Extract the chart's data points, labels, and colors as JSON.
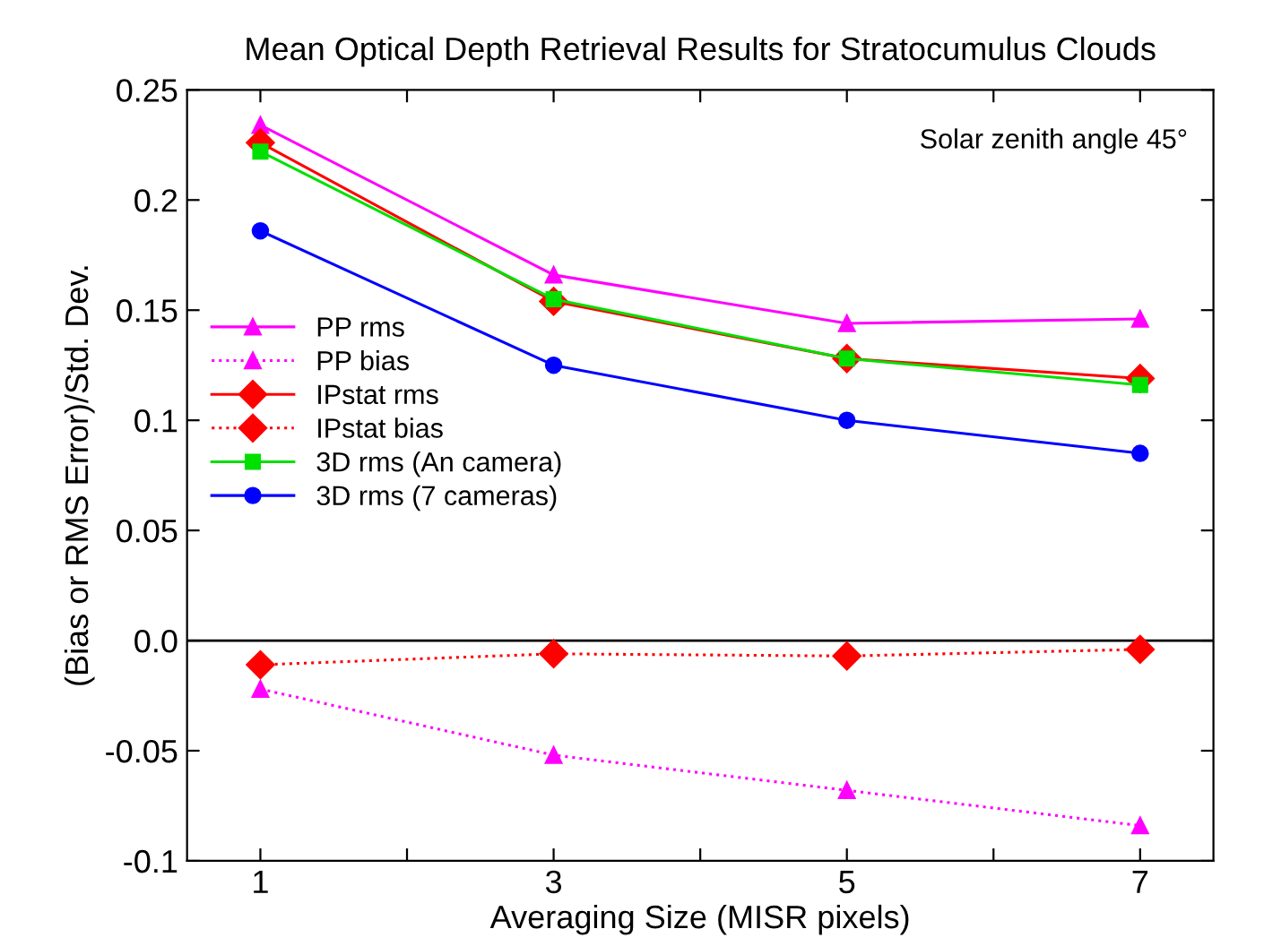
{
  "chart_data": {
    "type": "line",
    "title": "Mean Optical Depth Retrieval Results for Stratocumulus Clouds",
    "xlabel": "Averaging Size (MISR pixels)",
    "ylabel": "(Bias or RMS Error)/Std. Dev.",
    "annotations": [
      "Solar zenith angle 45°"
    ],
    "x": [
      1,
      3,
      5,
      7
    ],
    "series": [
      {
        "name": "PP rms",
        "color": "#ff00ff",
        "marker": "triangle",
        "line_style": "solid",
        "values": [
          0.234,
          0.166,
          0.144,
          0.146
        ]
      },
      {
        "name": "PP bias",
        "color": "#ff00ff",
        "marker": "triangle",
        "line_style": "dotted",
        "values": [
          -0.022,
          -0.052,
          -0.068,
          -0.084
        ]
      },
      {
        "name": "IPstat rms",
        "color": "#ff0000",
        "marker": "diamond",
        "line_style": "solid",
        "values": [
          0.226,
          0.154,
          0.128,
          0.119
        ]
      },
      {
        "name": "IPstat bias",
        "color": "#ff0000",
        "marker": "diamond",
        "line_style": "dotted",
        "values": [
          -0.011,
          -0.006,
          -0.007,
          -0.004
        ]
      },
      {
        "name": "3D rms (An camera)",
        "color": "#00e000",
        "marker": "square",
        "line_style": "solid",
        "values": [
          0.222,
          0.155,
          0.128,
          0.116
        ]
      },
      {
        "name": "3D rms (7 cameras)",
        "color": "#0000ff",
        "marker": "circle",
        "line_style": "solid",
        "values": [
          0.186,
          0.125,
          0.1,
          0.085
        ]
      }
    ],
    "xlim": [
      0.5,
      7.5
    ],
    "xticks": [
      1,
      {
        "value": 2,
        "label": null
      },
      3,
      {
        "value": 4,
        "label": null
      },
      5,
      {
        "value": 6,
        "label": null
      },
      7
    ],
    "ylim": [
      -0.1,
      0.25
    ],
    "yticks": [
      -0.1,
      -0.05,
      {
        "value": 0,
        "label": "0.0"
      },
      0.05,
      0.1,
      0.15,
      0.2,
      0.25
    ],
    "ref_lines": [
      {
        "axis": "y",
        "value": 0,
        "label": null,
        "color": "#000000"
      }
    ],
    "grid": false,
    "legend": "left"
  }
}
